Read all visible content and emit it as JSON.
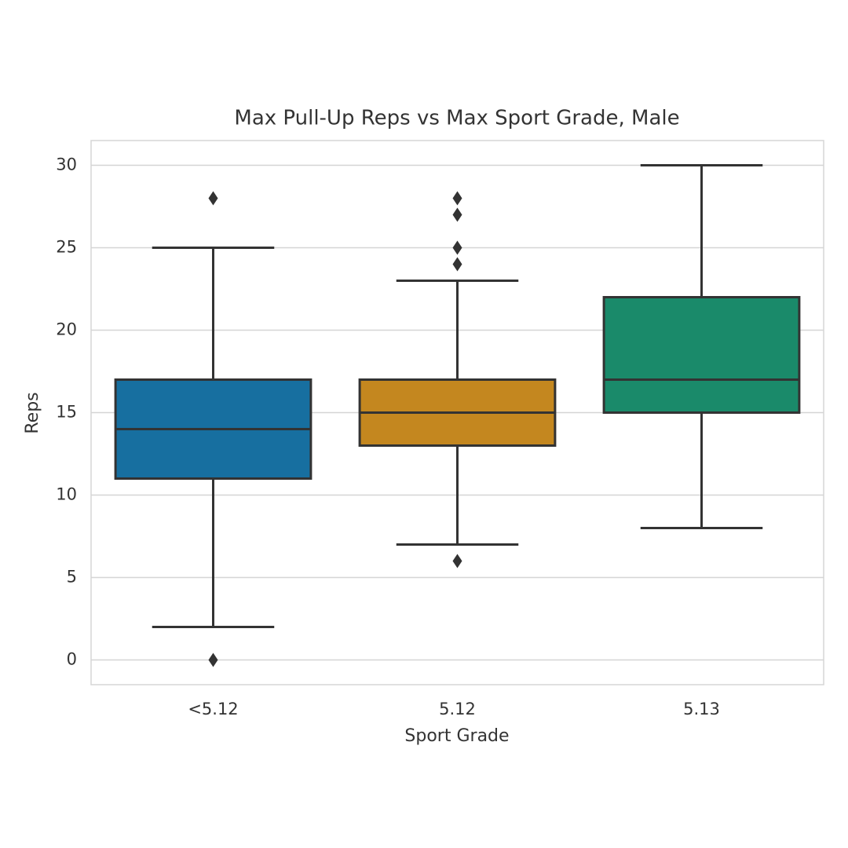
{
  "chart_data": {
    "type": "box",
    "title": "Max Pull-Up Reps vs Max Sport Grade, Male",
    "x_label": "Sport Grade",
    "y_label": "Reps",
    "categories": [
      "<5.12",
      "5.12",
      "5.13"
    ],
    "colors": [
      "#176fa0",
      "#c4871f",
      "#1a8a6a"
    ],
    "boxes": [
      {
        "whislo": 2,
        "q1": 11,
        "med": 14,
        "q3": 17,
        "whishi": 25,
        "fliers": [
          28,
          0
        ]
      },
      {
        "whislo": 7,
        "q1": 13,
        "med": 15,
        "q3": 17,
        "whishi": 23,
        "fliers": [
          28,
          27,
          25,
          24,
          6
        ]
      },
      {
        "whislo": 8,
        "q1": 15,
        "med": 17,
        "q3": 22,
        "whishi": 30,
        "fliers": []
      }
    ],
    "ylim": [
      -1.5,
      31.5
    ],
    "yticks": [
      0,
      5,
      10,
      15,
      20,
      25,
      30
    ],
    "grid": true
  }
}
